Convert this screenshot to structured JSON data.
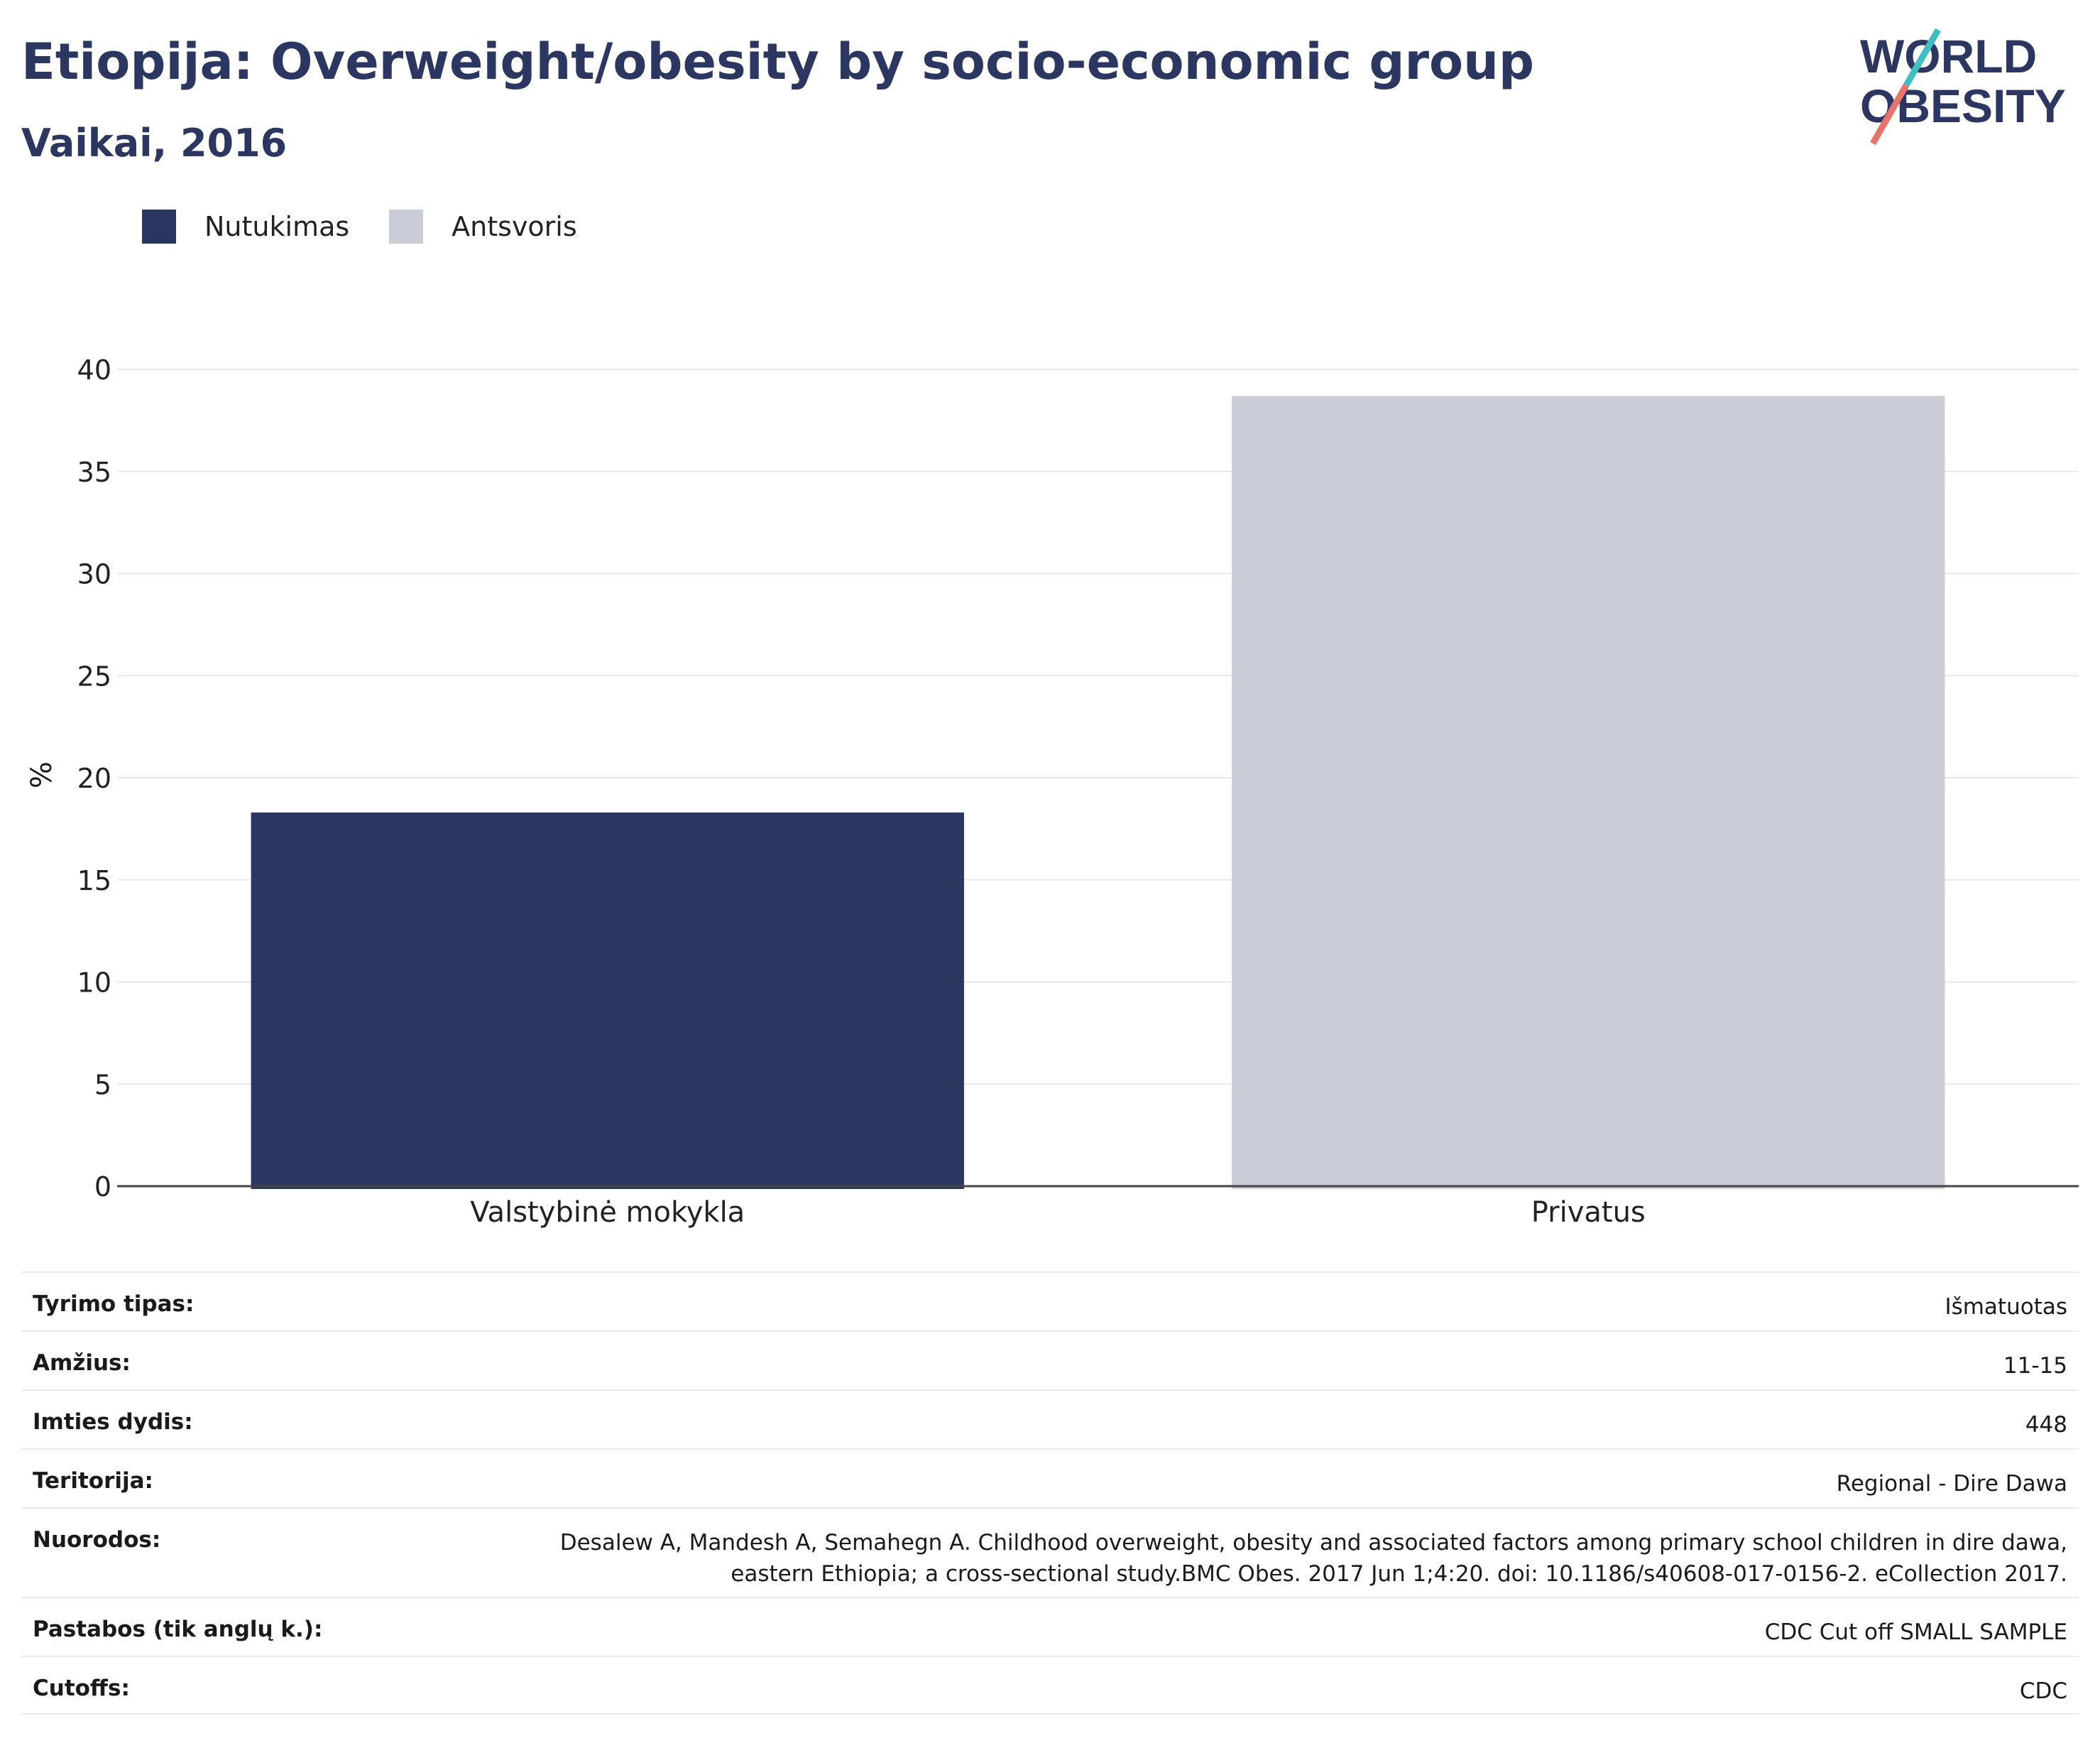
{
  "header": {
    "title": "Etiopija: Overweight/obesity by socio-economic group",
    "subtitle": "Vaikai, 2016"
  },
  "logo": {
    "line1": "WORLD",
    "line2": "OBESITY"
  },
  "legend": [
    {
      "label": "Nutukimas",
      "color": "#2b3661"
    },
    {
      "label": "Antsvoris",
      "color": "#cacdd8"
    }
  ],
  "chart_data": {
    "type": "bar",
    "categories": [
      "Valstybinė mokykla",
      "Privatus"
    ],
    "series": [
      {
        "name": "Nutukimas",
        "color": "#2b3661",
        "values": [
          18.3,
          null
        ]
      },
      {
        "name": "Antsvoris",
        "color": "#cacdd8",
        "values": [
          null,
          38.7
        ]
      }
    ],
    "ylabel": "%",
    "ylim": [
      0,
      40
    ],
    "yticks": [
      0,
      5,
      10,
      15,
      20,
      25,
      30,
      35,
      40
    ],
    "grid": true,
    "legend_position": "top-left"
  },
  "info": [
    {
      "key": "Tyrimo tipas:",
      "value": "Išmatuotas"
    },
    {
      "key": "Amžius:",
      "value": "11-15"
    },
    {
      "key": "Imties dydis:",
      "value": "448"
    },
    {
      "key": "Teritorija:",
      "value": "Regional - Dire Dawa"
    },
    {
      "key": "Nuorodos:",
      "value": "Desalew A, Mandesh A, Semahegn A. Childhood overweight, obesity and associated factors among primary school children in dire dawa, eastern Ethiopia; a cross-sectional study.BMC Obes. 2017 Jun 1;4:20. doi: 10.1186/s40608-017-0156-2. eCollection 2017."
    },
    {
      "key": "Pastabos (tik anglų k.):",
      "value": "CDC Cut off SMALL SAMPLE"
    },
    {
      "key": "Cutoffs:",
      "value": "CDC"
    }
  ]
}
